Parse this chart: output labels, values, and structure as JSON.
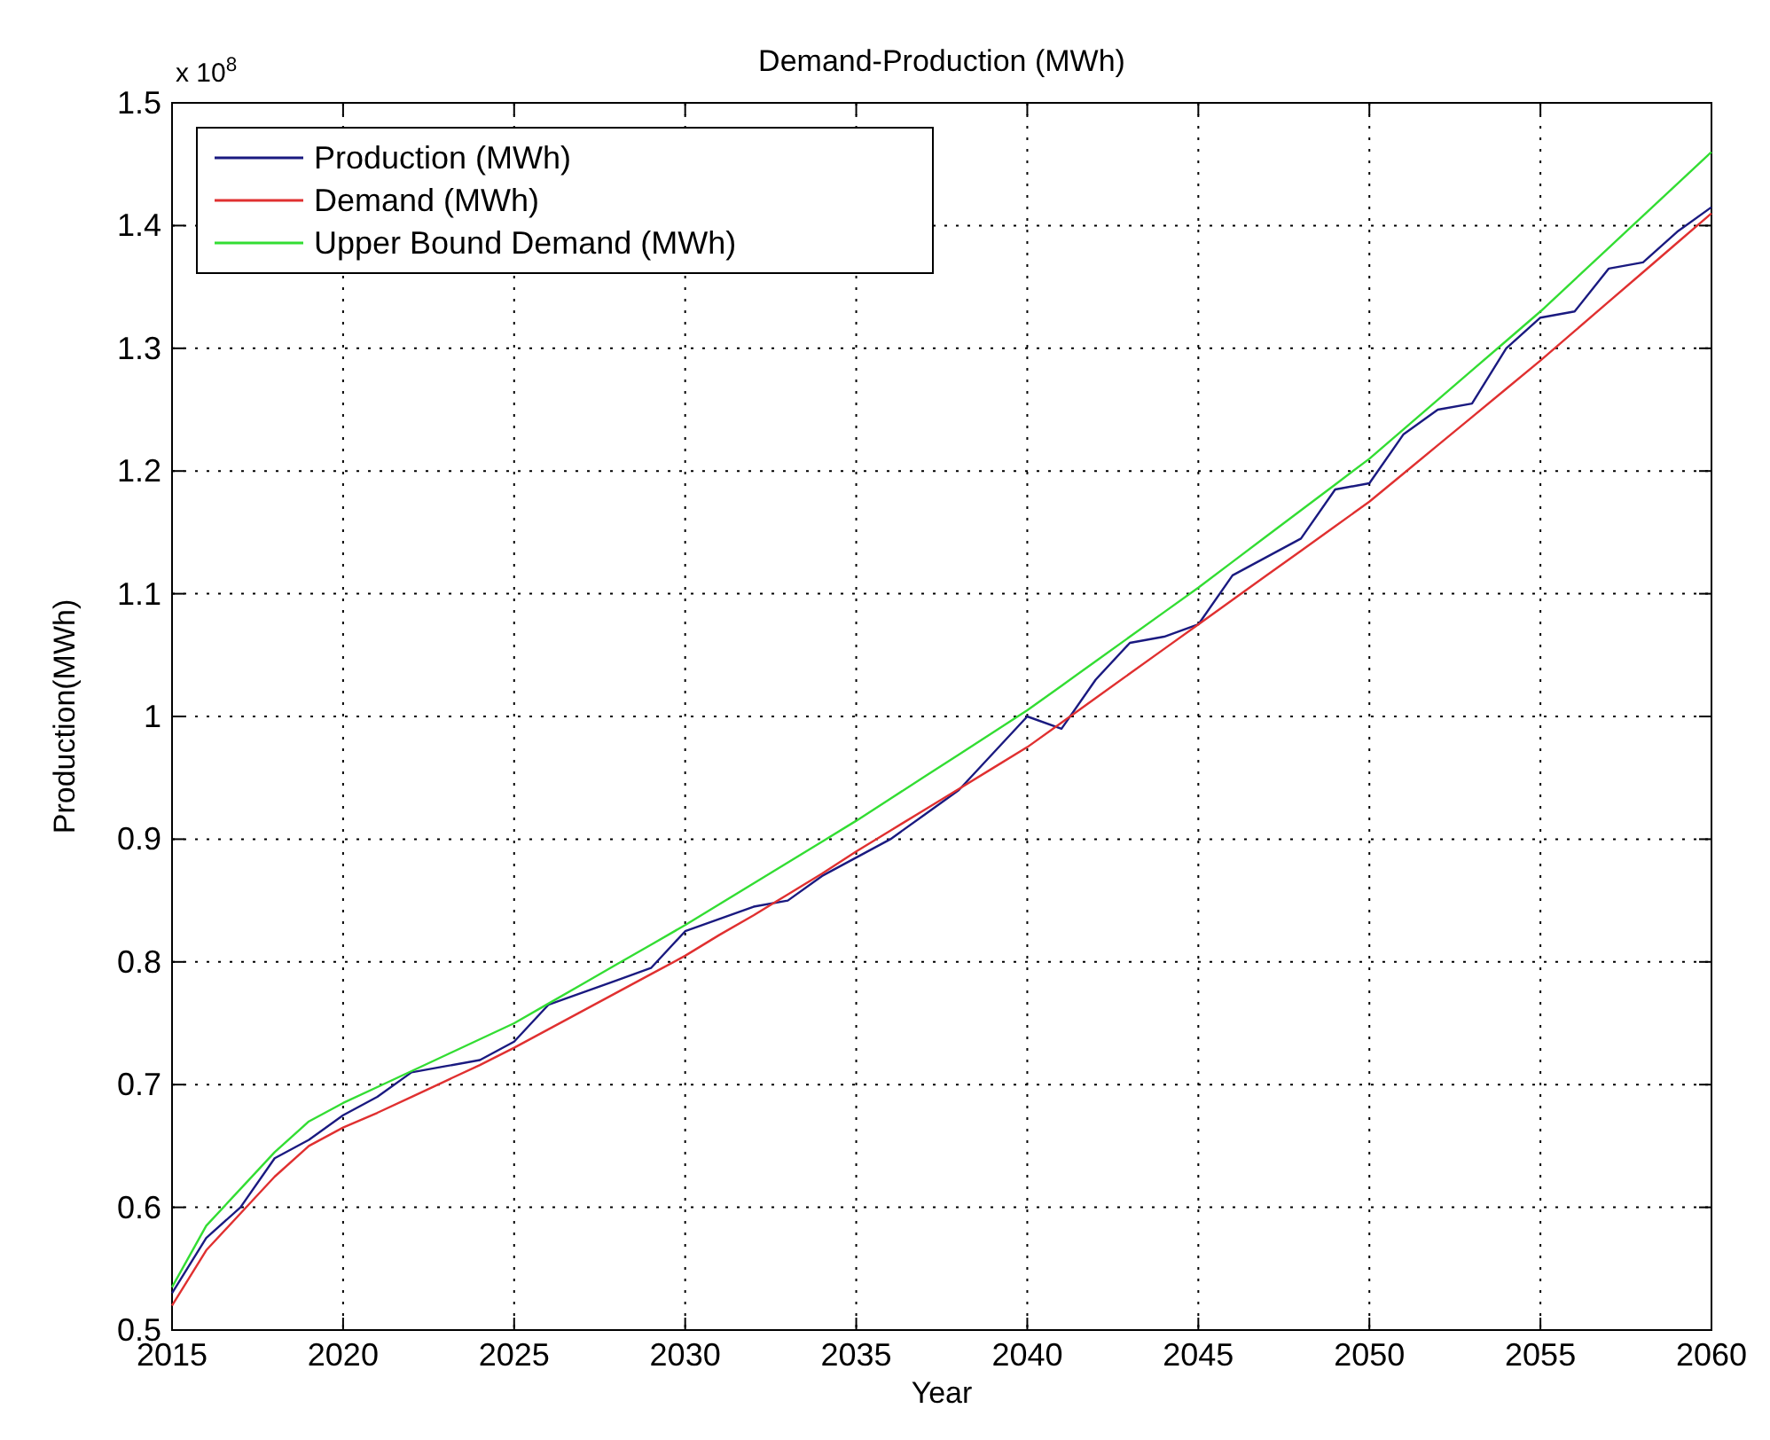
{
  "chart_data": {
    "type": "line",
    "title": "Demand-Production (MWh)",
    "xlabel": "Year",
    "ylabel": "Production(MWh)",
    "annotations": [
      "x 10$^{8}$"
    ],
    "x": [
      2015,
      2016,
      2017,
      2018,
      2019,
      2020,
      2021,
      2022,
      2023,
      2024,
      2025,
      2026,
      2027,
      2028,
      2029,
      2030,
      2031,
      2032,
      2033,
      2034,
      2035,
      2036,
      2037,
      2038,
      2039,
      2040,
      2041,
      2042,
      2043,
      2044,
      2045,
      2046,
      2047,
      2048,
      2049,
      2050,
      2051,
      2052,
      2053,
      2054,
      2055,
      2056,
      2057,
      2058,
      2059,
      2060
    ],
    "series": [
      {
        "name": "Production (MWh)",
        "color": "#1a1a80",
        "values": [
          0.53,
          0.575,
          0.6,
          0.64,
          0.655,
          0.675,
          0.69,
          0.71,
          0.715,
          0.72,
          0.735,
          0.765,
          0.775,
          0.785,
          0.795,
          0.825,
          0.835,
          0.845,
          0.85,
          0.87,
          0.885,
          0.9,
          0.92,
          0.94,
          0.97,
          1.0,
          0.99,
          1.03,
          1.06,
          1.065,
          1.075,
          1.115,
          1.13,
          1.145,
          1.185,
          1.19,
          1.23,
          1.25,
          1.255,
          1.3,
          1.325,
          1.33,
          1.365,
          1.37,
          1.395,
          1.415
        ]
      },
      {
        "name": "Demand (MWh)",
        "color": "#e03030",
        "values": [
          0.52,
          0.565,
          0.595,
          0.625,
          0.65,
          0.665,
          0.677,
          0.69,
          0.703,
          0.716,
          0.73,
          0.745,
          0.76,
          0.775,
          0.79,
          0.805,
          0.822,
          0.838,
          0.855,
          0.872,
          0.89,
          0.907,
          0.924,
          0.941,
          0.958,
          0.975,
          0.995,
          1.015,
          1.035,
          1.055,
          1.075,
          1.095,
          1.115,
          1.135,
          1.155,
          1.175,
          1.198,
          1.221,
          1.244,
          1.267,
          1.29,
          1.314,
          1.338,
          1.362,
          1.386,
          1.41
        ]
      },
      {
        "name": "Upper Bound Demand (MWh)",
        "color": "#33dd33",
        "values": [
          0.535,
          0.585,
          0.615,
          0.645,
          0.67,
          0.685,
          0.698,
          0.711,
          0.724,
          0.737,
          0.75,
          0.766,
          0.782,
          0.798,
          0.814,
          0.83,
          0.847,
          0.864,
          0.881,
          0.898,
          0.915,
          0.933,
          0.951,
          0.969,
          0.987,
          1.005,
          1.025,
          1.045,
          1.065,
          1.085,
          1.105,
          1.126,
          1.147,
          1.168,
          1.189,
          1.21,
          1.234,
          1.258,
          1.282,
          1.306,
          1.33,
          1.356,
          1.382,
          1.408,
          1.434,
          1.46
        ]
      }
    ],
    "xlim": [
      2015,
      2060
    ],
    "xticks": [
      2015,
      2020,
      2025,
      2030,
      2035,
      2040,
      2045,
      2050,
      2055,
      2060
    ],
    "ylim": [
      0.5,
      1.5
    ],
    "yticks": [
      0.5,
      0.6,
      0.7,
      0.8,
      0.9,
      1,
      1.1,
      1.2,
      1.3,
      1.4,
      1.5
    ],
    "grid": true,
    "legend": "top left",
    "line_style": "solid",
    "marker": "none"
  }
}
